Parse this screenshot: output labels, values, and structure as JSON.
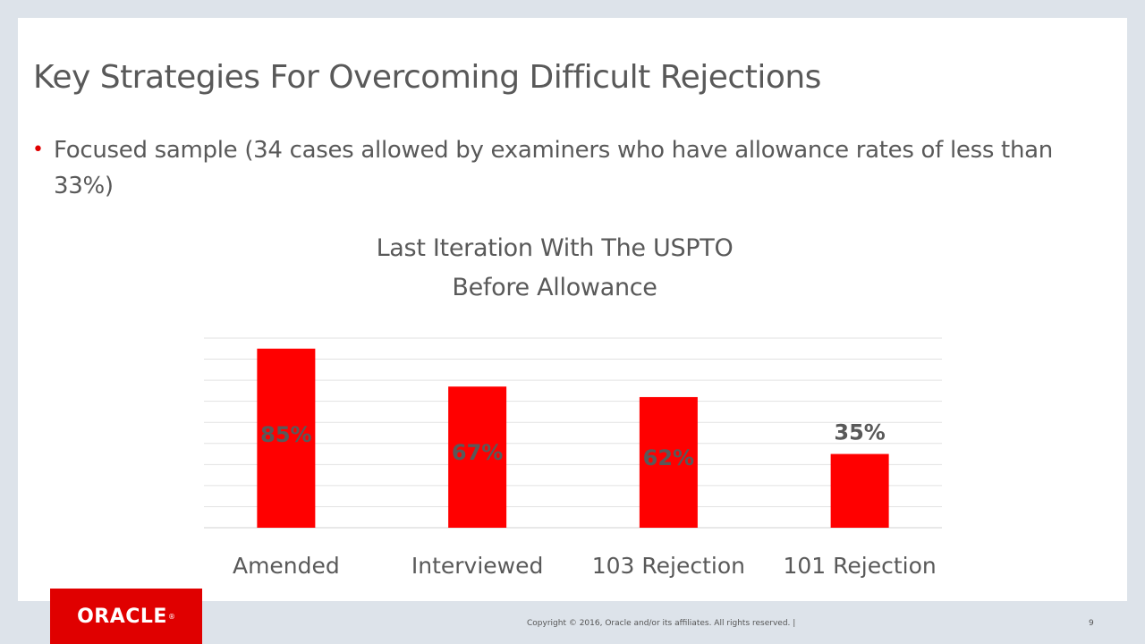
{
  "slide": {
    "title": "Key Strategies For Overcoming Difficult Rejections",
    "bullet": "Focused sample (34 cases allowed by examiners who have allowance rates of less than 33%)"
  },
  "chart_data": {
    "type": "bar",
    "title_lines": [
      "Last Iteration With The USPTO",
      "Before Allowance"
    ],
    "categories": [
      "Amended",
      "Interviewed",
      "103 Rejection",
      "101 Rejection"
    ],
    "values": [
      85,
      67,
      62,
      35
    ],
    "data_labels": [
      "85%",
      "67%",
      "62%",
      "35%"
    ],
    "ylim": [
      0,
      90
    ],
    "grid": true,
    "bar_color": "#ff0000",
    "label_color": "#595959"
  },
  "logo": {
    "text": "ORACLE",
    "registered_mark": "®",
    "background": "#e00000"
  },
  "footer": {
    "copyright": "Copyright © 2016, Oracle and/or its affiliates. All rights reserved.  |",
    "page_number": "9"
  }
}
